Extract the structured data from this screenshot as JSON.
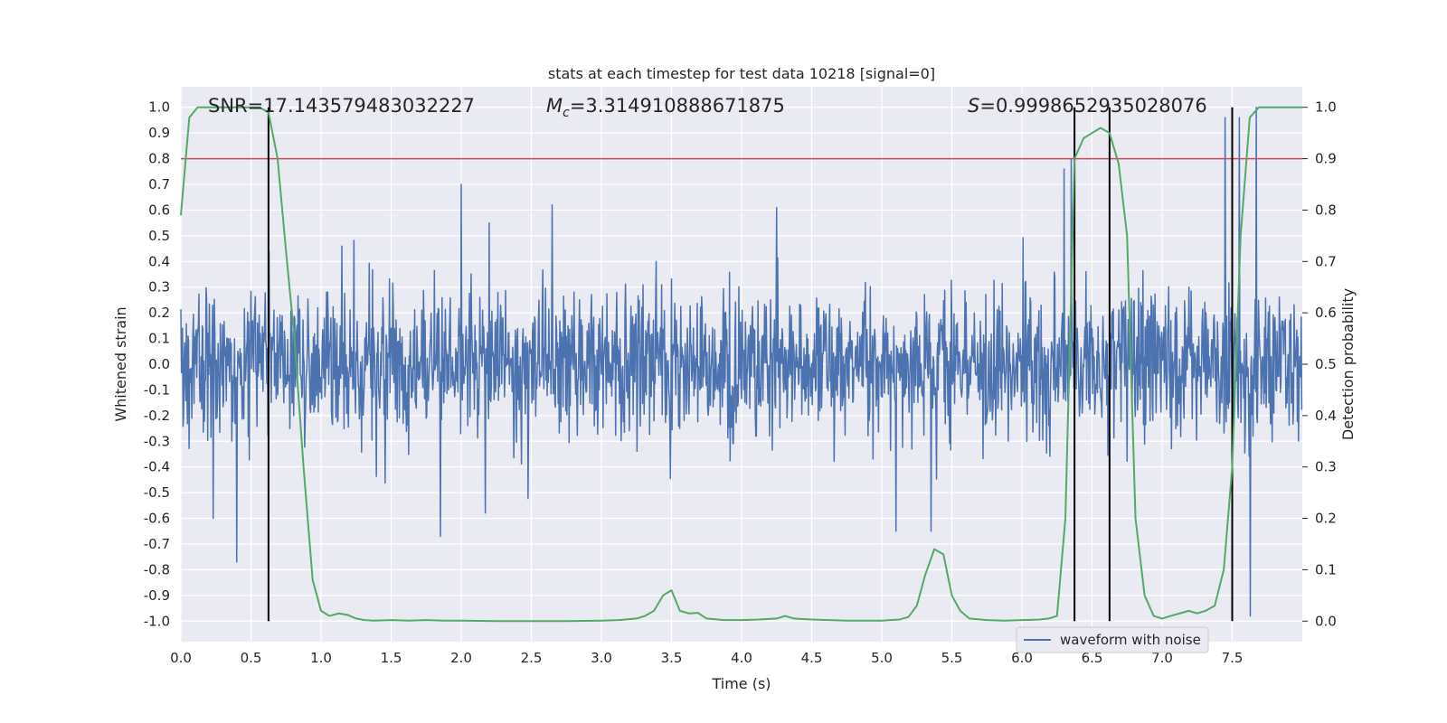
{
  "chart_data": {
    "type": "line",
    "title": "stats at each timestep for test data 10218 [signal=0]",
    "xlabel": "Time (s)",
    "ylabel_left": "Whitened strain",
    "ylabel_right": "Detection probability",
    "xlim": [
      0,
      8
    ],
    "ylim_left": [
      -1.08,
      1.08
    ],
    "ylim_right": [
      -0.04,
      1.04
    ],
    "x_ticks": [
      "0.0",
      "0.5",
      "1.0",
      "1.5",
      "2.0",
      "2.5",
      "3.0",
      "3.5",
      "4.0",
      "4.5",
      "5.0",
      "5.5",
      "6.0",
      "6.5",
      "7.0",
      "7.5"
    ],
    "y_left_ticks": [
      "1.0",
      "0.9",
      "0.8",
      "0.7",
      "0.6",
      "0.5",
      "0.4",
      "0.3",
      "0.2",
      "0.1",
      "0.0",
      "-0.1",
      "-0.2",
      "-0.3",
      "-0.4",
      "-0.5",
      "-0.6",
      "-0.7",
      "-0.8",
      "-0.9",
      "-1.0"
    ],
    "y_right_ticks": [
      "1.0",
      "0.9",
      "0.8",
      "0.7",
      "0.6",
      "0.5",
      "0.4",
      "0.3",
      "0.2",
      "0.1",
      "0.0"
    ],
    "grid": true,
    "legend_placement": "lower-right",
    "annotations": {
      "snr": "SNR=17.143579483032227",
      "mc": "=3.314910888671875",
      "mc_symbol": "M",
      "mc_sub": "c",
      "s": "=0.9998652935028076",
      "s_symbol": "S"
    },
    "threshold": 0.8,
    "vertical_lines": [
      0.625,
      6.375,
      6.625,
      7.5
    ],
    "series": [
      {
        "name": "waveform with noise",
        "kind": "noise",
        "color": "#4c72b0",
        "sample_rate_hz": 256,
        "envelope_note_peaks": [
          [
            0.4,
            -0.77
          ],
          [
            0.63,
            0.44
          ],
          [
            1.15,
            0.46
          ],
          [
            1.85,
            -0.67
          ],
          [
            2.0,
            0.7
          ],
          [
            2.2,
            0.55
          ],
          [
            2.65,
            0.62
          ],
          [
            4.25,
            0.61
          ],
          [
            5.1,
            -0.65
          ],
          [
            5.35,
            -0.65
          ],
          [
            6.3,
            0.76
          ],
          [
            6.35,
            0.8
          ],
          [
            7.45,
            0.96
          ],
          [
            7.55,
            0.96
          ],
          [
            7.63,
            -0.98
          ],
          [
            7.67,
            1.0
          ]
        ]
      },
      {
        "name": "",
        "kind": "probability",
        "color": "#55a868",
        "x": [
          0.0,
          0.06,
          0.12,
          0.2,
          0.3,
          0.4,
          0.5,
          0.56,
          0.625,
          0.69,
          0.75,
          0.81,
          0.875,
          0.94,
          1.0,
          1.06,
          1.125,
          1.19,
          1.25,
          1.31,
          1.375,
          1.5,
          1.625,
          1.75,
          1.875,
          2.0,
          2.25,
          2.5,
          2.75,
          3.0,
          3.125,
          3.25,
          3.31,
          3.375,
          3.44,
          3.5,
          3.56,
          3.625,
          3.69,
          3.75,
          3.875,
          4.0,
          4.125,
          4.25,
          4.31,
          4.375,
          4.5,
          4.625,
          4.75,
          4.875,
          5.0,
          5.125,
          5.19,
          5.25,
          5.31,
          5.375,
          5.44,
          5.5,
          5.56,
          5.625,
          5.75,
          5.875,
          6.0,
          6.125,
          6.19,
          6.25,
          6.31,
          6.375,
          6.44,
          6.5,
          6.56,
          6.625,
          6.69,
          6.75,
          6.81,
          6.875,
          6.94,
          7.0,
          7.06,
          7.125,
          7.19,
          7.25,
          7.31,
          7.375,
          7.44,
          7.5,
          7.56,
          7.625,
          7.69,
          7.75,
          8.0
        ],
        "y": [
          0.79,
          0.98,
          1.0,
          1.0,
          1.0,
          1.0,
          1.0,
          1.0,
          0.99,
          0.9,
          0.72,
          0.55,
          0.3,
          0.08,
          0.02,
          0.01,
          0.015,
          0.012,
          0.005,
          0.002,
          0.001,
          0.002,
          0.001,
          0.002,
          0.001,
          0.001,
          0.0,
          0.0,
          0.0,
          0.001,
          0.002,
          0.005,
          0.01,
          0.02,
          0.05,
          0.06,
          0.02,
          0.015,
          0.016,
          0.005,
          0.002,
          0.002,
          0.003,
          0.005,
          0.01,
          0.005,
          0.003,
          0.002,
          0.001,
          0.001,
          0.001,
          0.003,
          0.008,
          0.03,
          0.09,
          0.14,
          0.13,
          0.05,
          0.02,
          0.005,
          0.002,
          0.001,
          0.002,
          0.003,
          0.005,
          0.01,
          0.2,
          0.9,
          0.94,
          0.95,
          0.96,
          0.95,
          0.89,
          0.75,
          0.2,
          0.05,
          0.01,
          0.005,
          0.01,
          0.015,
          0.02,
          0.015,
          0.02,
          0.03,
          0.1,
          0.3,
          0.75,
          0.98,
          1.0,
          1.0,
          1.0
        ]
      }
    ],
    "colors": {
      "axes_background": "#eaeaf2",
      "grid": "#ffffff",
      "threshold": "#c44e52",
      "vertical": "#000000"
    }
  }
}
